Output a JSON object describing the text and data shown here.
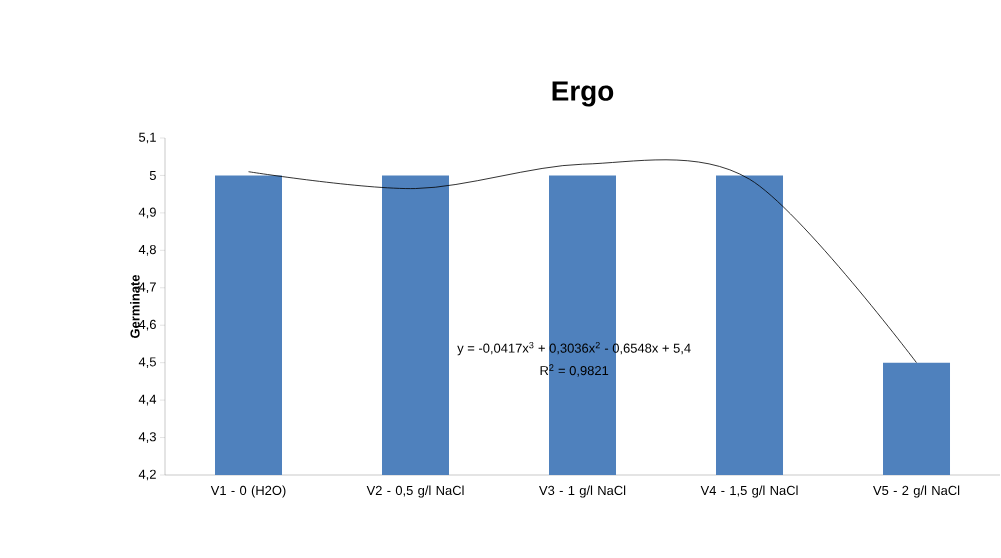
{
  "chart_data": {
    "type": "bar",
    "title": "Ergo",
    "ylabel": "Germinate",
    "categories": [
      "V1 - 0 (H2O)",
      "V2 - 0,5 g/l NaCl",
      "V3 - 1 g/l NaCl",
      "V4 - 1,5 g/l NaCl",
      "V5 - 2 g/l NaCl"
    ],
    "series": [
      {
        "color": "#4f81bd",
        "values": [
          5,
          5,
          5,
          5,
          4.5
        ]
      },
      {
        "type": "line",
        "color": "#000000",
        "values": [
          5.01,
          4.965,
          5.03,
          4.99,
          4.5
        ]
      }
    ],
    "ylim": [
      4.2,
      5.1
    ],
    "yticks": [
      {
        "value": 4.2,
        "label": "4,2"
      },
      {
        "value": 4.3,
        "label": "4,3"
      },
      {
        "value": 4.4,
        "label": "4,4"
      },
      {
        "value": 4.5,
        "label": "4,5"
      },
      {
        "value": 4.6,
        "label": "4,6"
      },
      {
        "value": 4.7,
        "label": "4,7"
      },
      {
        "value": 4.8,
        "label": "4,8"
      },
      {
        "value": 4.9,
        "label": "4,9"
      },
      {
        "value": 5,
        "label": "5"
      },
      {
        "value": 5.1,
        "label": "5,1"
      }
    ],
    "annotations": [
      "y = -0,0417x$^{3}$ + 0,3036x$^{2}$ - 0,6548x + 5,4",
      "R$^{2}$ = 0,9821"
    ],
    "grid": false,
    "marker": "none"
  }
}
